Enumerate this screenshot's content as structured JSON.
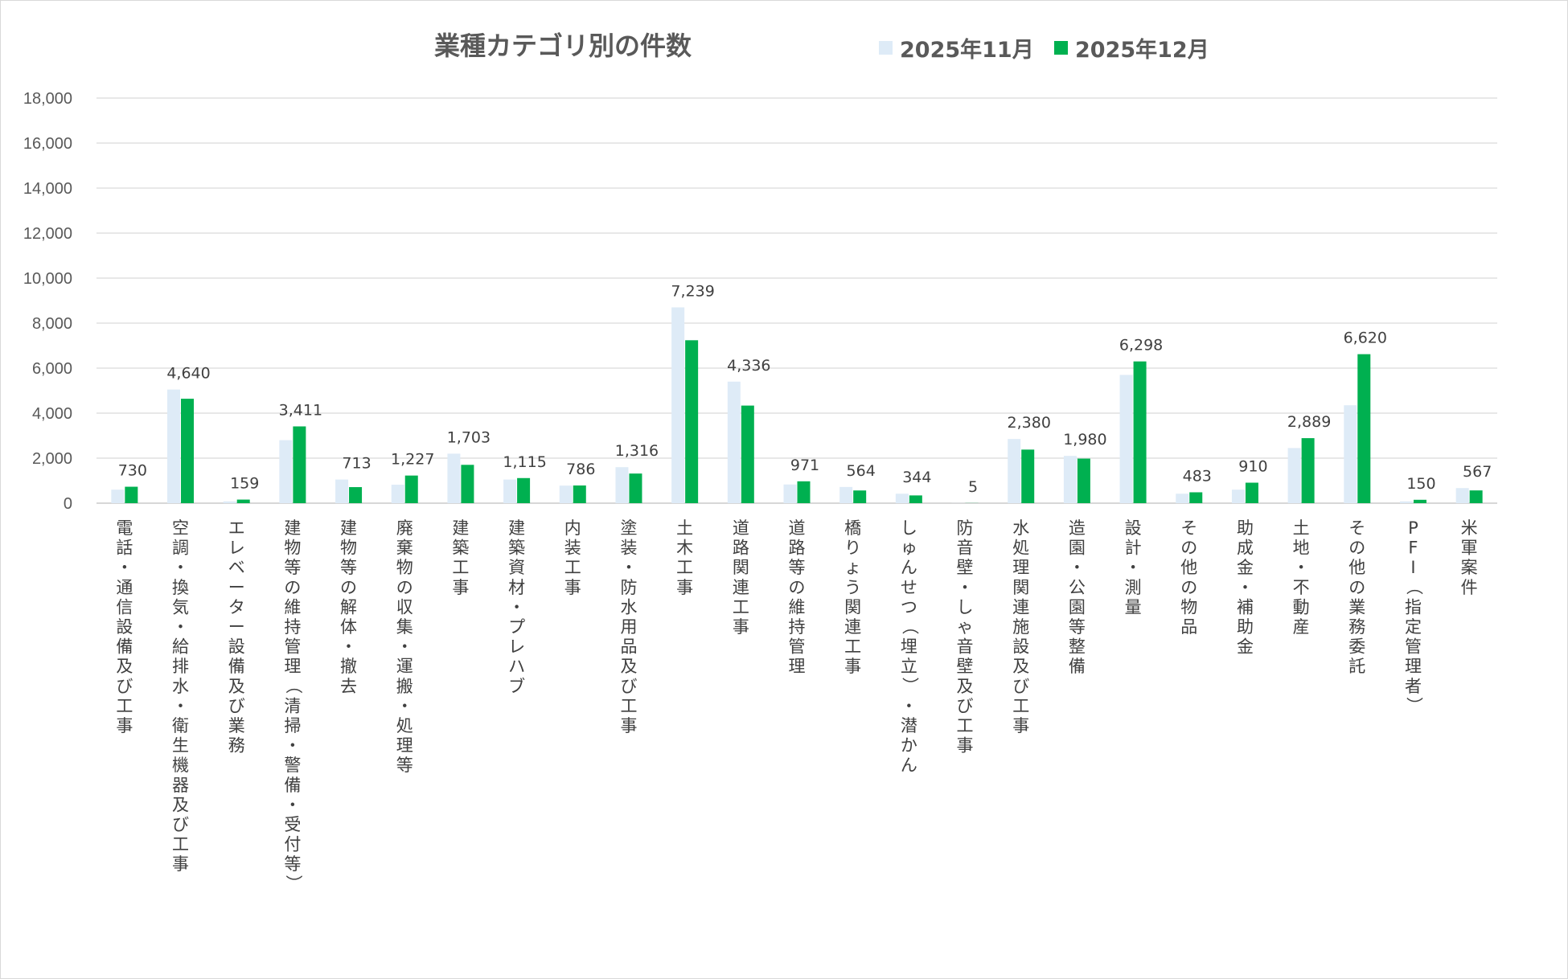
{
  "chart_data": {
    "type": "bar",
    "title": "業種カテゴリ別の件数",
    "xlabel": "",
    "ylabel": "",
    "ylim": [
      0,
      18000
    ],
    "yticks": [
      "0",
      "2,000",
      "4,000",
      "6,000",
      "8,000",
      "10,000",
      "12,000",
      "14,000",
      "16,000",
      "18,000"
    ],
    "grid": true,
    "legend_position": "top-right",
    "categories": [
      "電話・通信設備及び工事",
      "空調・換気・給排水・衛生機器及び工事",
      "エレベーター設備及び業務",
      "建物等の維持管理（清掃・警備・受付等）",
      "建物等の解体・撤去",
      "廃棄物の収集・運搬・処理等",
      "建築工事",
      "建築資材・プレハブ",
      "内装工事",
      "塗装・防水用品及び工事",
      "土木工事",
      "道路関連工事",
      "道路等の維持管理",
      "橋りょう関連工事",
      "しゅんせつ（埋立）・潜かん",
      "防音壁・しゃ音壁及び工事",
      "水処理関連施設及び工事",
      "造園・公園等整備",
      "設計・測量",
      "その他の物品",
      "助成金・補助金",
      "土地・不動産",
      "その他の業務委託",
      "PFI（指定管理者）",
      "米軍案件"
    ],
    "series": [
      {
        "name": "2025年11月",
        "color": "#deebf7",
        "values": [
          600,
          5050,
          80,
          2800,
          1050,
          820,
          2200,
          1050,
          780,
          1600,
          8700,
          5400,
          830,
          720,
          420,
          5,
          2850,
          2100,
          5700,
          420,
          600,
          2450,
          4350,
          80,
          670
        ]
      },
      {
        "name": "2025年12月",
        "color": "#00b050",
        "values": [
          730,
          4640,
          159,
          3411,
          713,
          1227,
          1703,
          1115,
          786,
          1316,
          7239,
          4336,
          971,
          564,
          344,
          5,
          2380,
          1980,
          6298,
          483,
          910,
          2889,
          6620,
          150,
          567
        ],
        "data_labels": [
          "730",
          "4,640",
          "159",
          "3,411",
          "713",
          "1,227",
          "1,703",
          "1,115",
          "786",
          "1,316",
          "7,239",
          "4,336",
          "971",
          "564",
          "344",
          "5",
          "2,380",
          "1,980",
          "6,298",
          "483",
          "910",
          "2,889",
          "6,620",
          "150",
          "567"
        ]
      }
    ]
  }
}
